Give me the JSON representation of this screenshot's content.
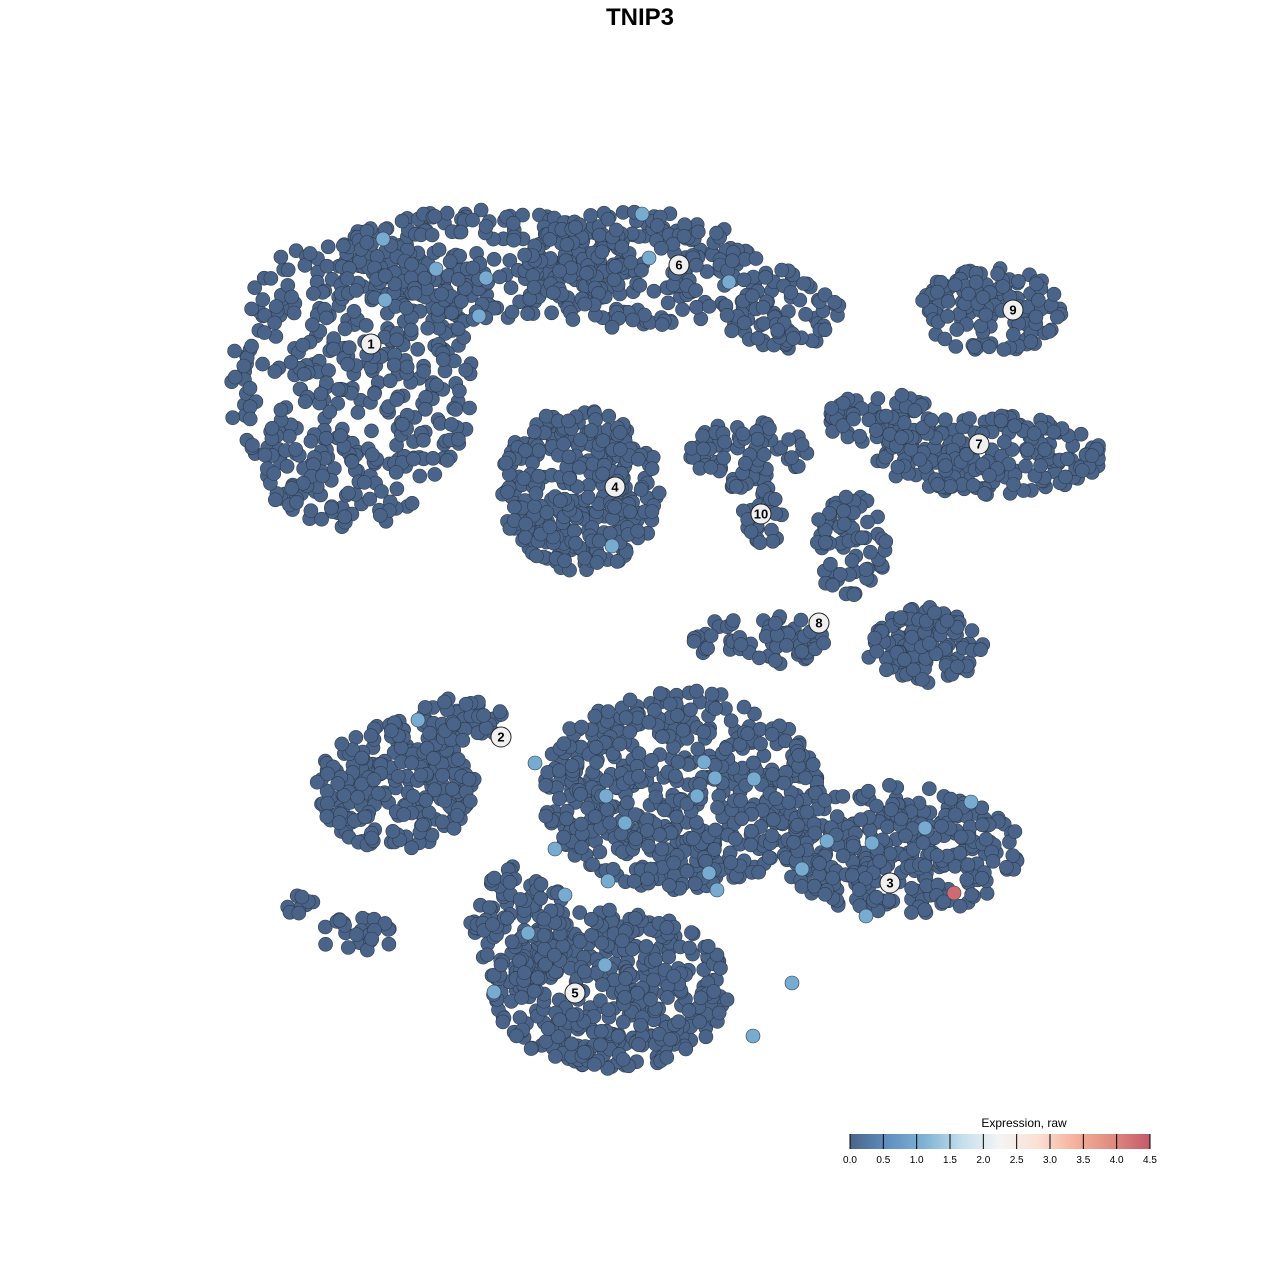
{
  "chart_data": {
    "type": "scatter",
    "title": "TNIP3",
    "xlabel": "",
    "ylabel": "",
    "grid": false,
    "axes_visible": false,
    "base_color": "#4a6489",
    "cluster_labels": [
      {
        "label": "1",
        "x": -26.9,
        "y": 29.6
      },
      {
        "label": "2",
        "x": -13.9,
        "y": -9.7
      },
      {
        "label": "3",
        "x": 25.0,
        "y": -24.3
      },
      {
        "label": "4",
        "x": -2.5,
        "y": 15.3
      },
      {
        "label": "5",
        "x": -6.5,
        "y": -35.3
      },
      {
        "label": "6",
        "x": 3.9,
        "y": 37.5
      },
      {
        "label": "7",
        "x": 33.9,
        "y": 19.6
      },
      {
        "label": "8",
        "x": 17.9,
        "y": 1.7
      },
      {
        "label": "9",
        "x": 37.3,
        "y": 33.0
      },
      {
        "label": "10",
        "x": 12.1,
        "y": 12.6
      }
    ],
    "expressing_points": [
      {
        "x": -25.7,
        "y": 40.1,
        "value": 1.0
      },
      {
        "x": -20.4,
        "y": 37.1,
        "value": 1.0
      },
      {
        "x": -15.4,
        "y": 36.2,
        "value": 1.0
      },
      {
        "x": -25.5,
        "y": 34.0,
        "value": 1.0
      },
      {
        "x": -16.1,
        "y": 32.4,
        "value": 1.0
      },
      {
        "x": 0.2,
        "y": 42.6,
        "value": 1.0
      },
      {
        "x": 0.9,
        "y": 38.2,
        "value": 1.0
      },
      {
        "x": 8.9,
        "y": 35.8,
        "value": 1.0
      },
      {
        "x": -2.8,
        "y": 9.4,
        "value": 1.0
      },
      {
        "x": -22.2,
        "y": -8.0,
        "value": 1.0
      },
      {
        "x": -10.5,
        "y": -12.3,
        "value": 1.0
      },
      {
        "x": 6.4,
        "y": -12.2,
        "value": 1.0
      },
      {
        "x": 7.5,
        "y": -13.8,
        "value": 1.0
      },
      {
        "x": 11.4,
        "y": -13.9,
        "value": 1.0
      },
      {
        "x": -3.4,
        "y": -15.6,
        "value": 1.0
      },
      {
        "x": 5.7,
        "y": -15.6,
        "value": 1.0
      },
      {
        "x": 33.1,
        "y": -16.2,
        "value": 1.0
      },
      {
        "x": -1.5,
        "y": -18.3,
        "value": 1.0
      },
      {
        "x": 28.5,
        "y": -18.8,
        "value": 1.0
      },
      {
        "x": 18.7,
        "y": -20.1,
        "value": 1.0
      },
      {
        "x": 23.2,
        "y": -20.3,
        "value": 1.0
      },
      {
        "x": -8.5,
        "y": -20.9,
        "value": 1.0
      },
      {
        "x": 16.2,
        "y": -22.9,
        "value": 1.0
      },
      {
        "x": 6.9,
        "y": -23.3,
        "value": 1.0
      },
      {
        "x": -3.2,
        "y": -24.1,
        "value": 1.0
      },
      {
        "x": 7.7,
        "y": -25.0,
        "value": 1.0
      },
      {
        "x": -7.5,
        "y": -25.5,
        "value": 1.0
      },
      {
        "x": 22.6,
        "y": -27.6,
        "value": 1.0
      },
      {
        "x": -11.2,
        "y": -29.3,
        "value": 1.0
      },
      {
        "x": -3.5,
        "y": -32.5,
        "value": 1.0
      },
      {
        "x": -14.6,
        "y": -35.2,
        "value": 1.0
      },
      {
        "x": 15.2,
        "y": -34.3,
        "value": 1.0
      },
      {
        "x": 11.3,
        "y": -39.6,
        "value": 1.0
      },
      {
        "x": 31.4,
        "y": -25.3,
        "value": 4.3
      }
    ],
    "legend": {
      "title": "Expression, raw",
      "placement": "bottom-right",
      "range": [
        0.0,
        4.5
      ],
      "ticks": [
        "0.0",
        "0.5",
        "1.0",
        "1.5",
        "2.0",
        "2.5",
        "3.0",
        "3.5",
        "4.0",
        "4.5"
      ],
      "colors": [
        "#4a6489",
        "#5f8fc0",
        "#7fb3d5",
        "#c5dfec",
        "#f4f4f4",
        "#fbe0d3",
        "#f4b29c",
        "#e08a80",
        "#c45a6a"
      ]
    }
  }
}
